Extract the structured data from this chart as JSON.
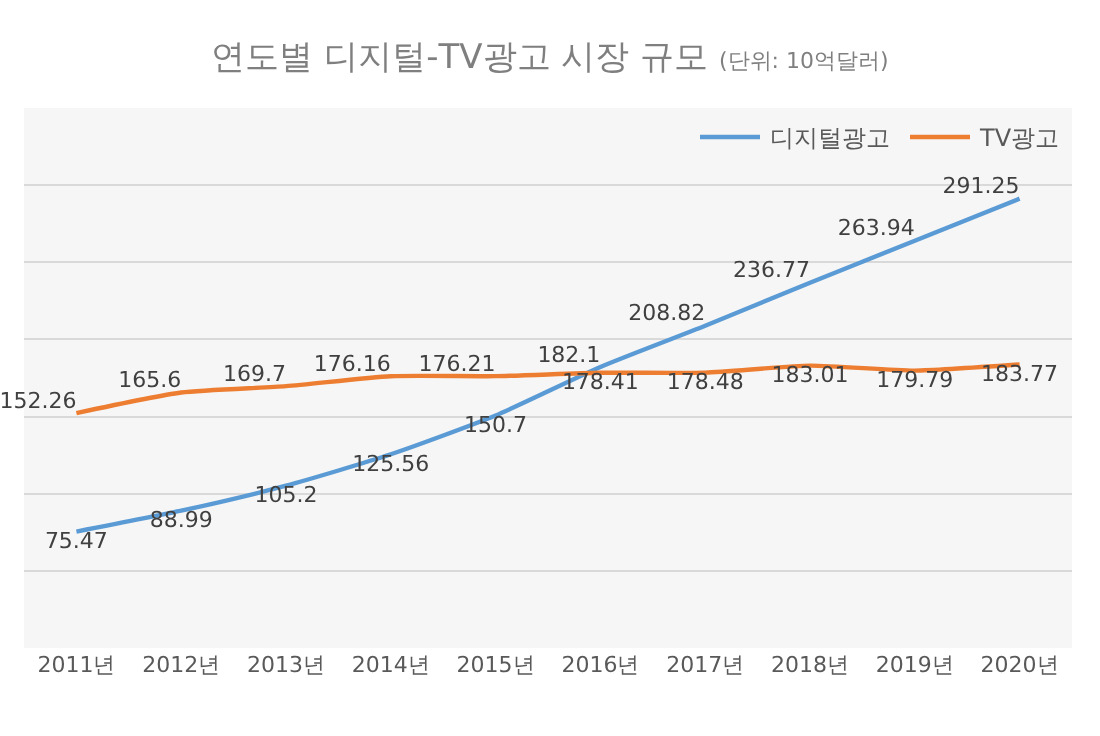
{
  "chart_data": {
    "type": "line",
    "title": "연도별 디지털-TV광고 시장 규모",
    "subtitle": "(단위: 10억달러)",
    "categories": [
      "2011년",
      "2012년",
      "2013년",
      "2014년",
      "2015년",
      "2016년",
      "2017년",
      "2018년",
      "2019년",
      "2020년"
    ],
    "series": [
      {
        "name": "디지털광고",
        "color": "#5b9bd5",
        "values": [
          75.47,
          88.99,
          105.2,
          125.56,
          150.7,
          182.1,
          208.82,
          236.77,
          263.94,
          291.25
        ]
      },
      {
        "name": "TV광고",
        "color": "#ed7d31",
        "values": [
          152.26,
          165.6,
          169.7,
          176.16,
          176.21,
          178.41,
          178.48,
          183.01,
          179.79,
          183.77
        ]
      }
    ],
    "ylim": [
      0,
      350
    ],
    "yticks": [
      {
        "value": 0,
        "label": null
      },
      {
        "value": 50,
        "label": null
      },
      {
        "value": 100,
        "label": null
      },
      {
        "value": 150,
        "label": null
      },
      {
        "value": 200,
        "label": null
      },
      {
        "value": 250,
        "label": null
      },
      {
        "value": 300,
        "label": null
      },
      {
        "value": 350,
        "label": null
      }
    ],
    "grid": "y",
    "legend": "top right",
    "tick_labels": "x",
    "data_labels": true,
    "marker": "none",
    "line_style": "solid"
  }
}
